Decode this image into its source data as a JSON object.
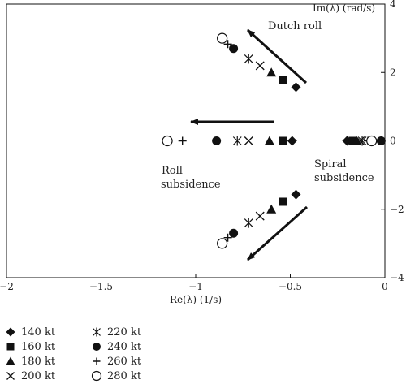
{
  "chart_data": {
    "type": "scatter",
    "title": "",
    "xlabel": "Re(λ) (1/s)",
    "ylabel": "Im(λ) (rad/s)",
    "xlim": [
      -2,
      0
    ],
    "ylim": [
      -4,
      4
    ],
    "xticks": [
      -2,
      -1.5,
      -1,
      -0.5,
      0
    ],
    "xtick_labels": [
      "−2",
      "−1.5",
      "−1",
      "−0.5",
      "0"
    ],
    "yticks": [
      -4,
      -2,
      0,
      2,
      4
    ],
    "ytick_labels": [
      "−4",
      "−2",
      "0",
      "2",
      "4"
    ],
    "grid": false,
    "legend_position": "below-left",
    "annotations": [
      "Dutch roll",
      "Roll subsidence",
      "Spiral subsidence"
    ],
    "series": [
      {
        "name": "140 kt",
        "marker": "diamond",
        "points": [
          [
            -0.47,
            1.57
          ],
          [
            -0.47,
            -1.57
          ],
          [
            -0.49,
            0
          ],
          [
            -0.2,
            0
          ]
        ]
      },
      {
        "name": "160 kt",
        "marker": "square",
        "points": [
          [
            -0.54,
            1.78
          ],
          [
            -0.54,
            -1.78
          ],
          [
            -0.54,
            0
          ],
          [
            -0.17,
            0
          ]
        ]
      },
      {
        "name": "180 kt",
        "marker": "triangle",
        "points": [
          [
            -0.6,
            2.0
          ],
          [
            -0.6,
            -2.0
          ],
          [
            -0.61,
            0
          ],
          [
            -0.15,
            0
          ]
        ]
      },
      {
        "name": "200 kt",
        "marker": "x",
        "points": [
          [
            -0.66,
            2.2
          ],
          [
            -0.66,
            -2.2
          ],
          [
            -0.72,
            0
          ],
          [
            -0.13,
            0
          ]
        ]
      },
      {
        "name": "220 kt",
        "marker": "asterisk",
        "points": [
          [
            -0.72,
            2.4
          ],
          [
            -0.72,
            -2.4
          ],
          [
            -0.78,
            0
          ],
          [
            -0.12,
            0
          ]
        ]
      },
      {
        "name": "240 kt",
        "marker": "circle",
        "points": [
          [
            -0.8,
            2.7
          ],
          [
            -0.8,
            -2.7
          ],
          [
            -0.89,
            0
          ],
          [
            -0.02,
            0
          ]
        ]
      },
      {
        "name": "260 kt",
        "marker": "plus",
        "points": [
          [
            -0.83,
            2.83
          ],
          [
            -0.83,
            -2.83
          ],
          [
            -1.07,
            0
          ],
          [
            -0.09,
            0
          ]
        ]
      },
      {
        "name": "280 kt",
        "marker": "open-circle",
        "points": [
          [
            -0.86,
            3.0
          ],
          [
            -0.86,
            -3.0
          ],
          [
            -1.15,
            0
          ],
          [
            -0.07,
            0
          ]
        ]
      }
    ]
  },
  "legend": {
    "items": [
      {
        "label": "140 kt"
      },
      {
        "label": "160 kt"
      },
      {
        "label": "180 kt"
      },
      {
        "label": "200 kt"
      },
      {
        "label": "220 kt"
      },
      {
        "label": "240 kt"
      },
      {
        "label": "260 kt"
      },
      {
        "label": "280 kt"
      }
    ]
  }
}
